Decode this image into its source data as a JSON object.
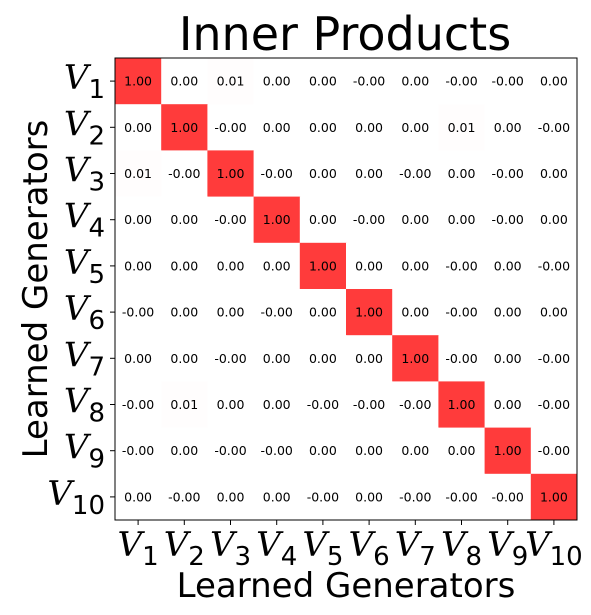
{
  "chart_data": {
    "type": "heatmap",
    "title": "Inner Products",
    "xlabel": "Learned Generators",
    "ylabel": "Learned Generators",
    "tick_symbol": "V",
    "rows": [
      "1",
      "2",
      "3",
      "4",
      "5",
      "6",
      "7",
      "8",
      "9",
      "10"
    ],
    "cols": [
      "1",
      "2",
      "3",
      "4",
      "5",
      "6",
      "7",
      "8",
      "9",
      "10"
    ],
    "values": [
      [
        "1.00",
        "0.00",
        "0.01",
        "0.00",
        "0.00",
        "-0.00",
        "0.00",
        "-0.00",
        "-0.00",
        "0.00"
      ],
      [
        "0.00",
        "1.00",
        "-0.00",
        "0.00",
        "0.00",
        "0.00",
        "0.00",
        "0.01",
        "0.00",
        "-0.00"
      ],
      [
        "0.01",
        "-0.00",
        "1.00",
        "-0.00",
        "0.00",
        "0.00",
        "-0.00",
        "0.00",
        "-0.00",
        "0.00"
      ],
      [
        "0.00",
        "0.00",
        "-0.00",
        "1.00",
        "0.00",
        "-0.00",
        "0.00",
        "0.00",
        "-0.00",
        "0.00"
      ],
      [
        "0.00",
        "0.00",
        "0.00",
        "0.00",
        "1.00",
        "0.00",
        "0.00",
        "-0.00",
        "0.00",
        "-0.00"
      ],
      [
        "-0.00",
        "0.00",
        "0.00",
        "-0.00",
        "0.00",
        "1.00",
        "0.00",
        "-0.00",
        "0.00",
        "0.00"
      ],
      [
        "0.00",
        "0.00",
        "-0.00",
        "0.00",
        "0.00",
        "0.00",
        "1.00",
        "-0.00",
        "0.00",
        "-0.00"
      ],
      [
        "-0.00",
        "0.01",
        "0.00",
        "0.00",
        "-0.00",
        "-0.00",
        "-0.00",
        "1.00",
        "0.00",
        "-0.00"
      ],
      [
        "-0.00",
        "0.00",
        "-0.00",
        "-0.00",
        "0.00",
        "0.00",
        "0.00",
        "0.00",
        "1.00",
        "-0.00"
      ],
      [
        "0.00",
        "-0.00",
        "0.00",
        "0.00",
        "-0.00",
        "0.00",
        "-0.00",
        "-0.00",
        "-0.00",
        "1.00"
      ]
    ],
    "colors": {
      "high": "#ff3b3b",
      "zero": "#ffffff"
    },
    "vmin": 0,
    "vmax": 1
  }
}
